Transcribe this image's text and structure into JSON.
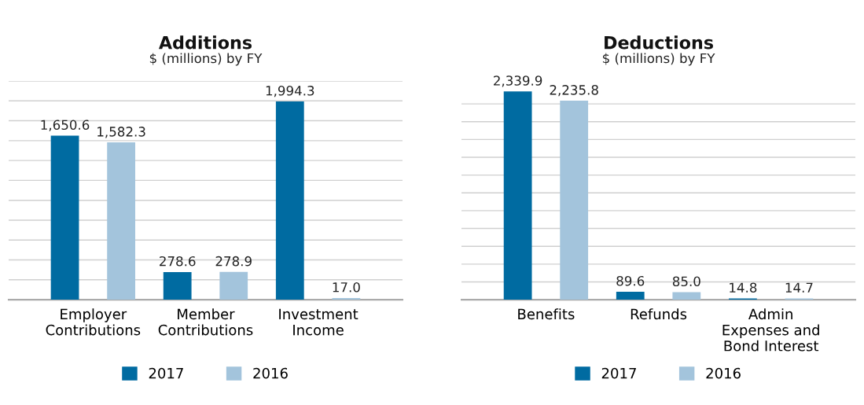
{
  "chart_data": [
    {
      "type": "bar",
      "title": "Additions",
      "subtitle": "$ (millions) by FY",
      "categories": [
        "Employer\nContributions",
        "Member\nContributions",
        "Investment\nIncome"
      ],
      "series": [
        {
          "name": "2017",
          "color": "#006ba1",
          "values": [
            1650.6,
            278.6,
            1994.3
          ],
          "value_labels": [
            "1,650.6",
            "278.6",
            "1,994.3"
          ]
        },
        {
          "name": "2016",
          "color": "#a3c4dc",
          "values": [
            1582.3,
            278.9,
            17.0
          ],
          "value_labels": [
            "1,582.3",
            "278.9",
            "17.0"
          ]
        }
      ],
      "yticks": [
        {
          "value": 0,
          "label": null
        },
        {
          "value": 200,
          "label": null
        },
        {
          "value": 400,
          "label": null
        },
        {
          "value": 600,
          "label": null
        },
        {
          "value": 800,
          "label": null
        },
        {
          "value": 1000,
          "label": null
        },
        {
          "value": 1200,
          "label": null
        },
        {
          "value": 1400,
          "label": null
        },
        {
          "value": 1600,
          "label": null
        },
        {
          "value": 1800,
          "label": null
        },
        {
          "value": 2000,
          "label": null
        },
        {
          "value": 2200,
          "label": null
        }
      ],
      "tick_labels": "x",
      "grid": "y",
      "legend": "bottom"
    },
    {
      "type": "bar",
      "title": "Deductions",
      "subtitle": "$ (millions) by FY",
      "categories": [
        "Benefits",
        "Refunds",
        "Admin\nExpenses and\nBond Interest"
      ],
      "series": [
        {
          "name": "2017",
          "color": "#006ba1",
          "values": [
            2339.9,
            89.6,
            14.8
          ],
          "value_labels": [
            "2,339.9",
            "89.6",
            "14.8"
          ]
        },
        {
          "name": "2016",
          "color": "#a3c4dc",
          "values": [
            2235.8,
            85.0,
            14.7
          ],
          "value_labels": [
            "2,235.8",
            "85.0",
            "14.7"
          ]
        }
      ],
      "yticks": [
        {
          "value": 0,
          "label": null
        },
        {
          "value": 200,
          "label": null
        },
        {
          "value": 400,
          "label": null
        },
        {
          "value": 600,
          "label": null
        },
        {
          "value": 800,
          "label": null
        },
        {
          "value": 1000,
          "label": null
        },
        {
          "value": 1200,
          "label": null
        },
        {
          "value": 1400,
          "label": null
        },
        {
          "value": 1600,
          "label": null
        },
        {
          "value": 1800,
          "label": null
        },
        {
          "value": 2000,
          "label": null
        },
        {
          "value": 2200,
          "label": null
        }
      ],
      "tick_labels": "x",
      "grid": "y",
      "legend": "bottom"
    }
  ]
}
